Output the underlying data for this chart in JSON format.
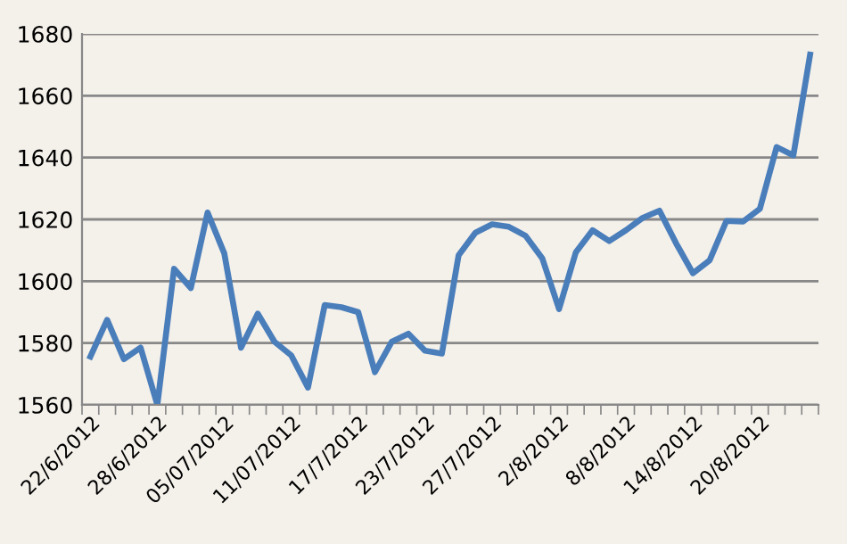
{
  "chart_data": {
    "type": "line",
    "categories": [
      "22/6/2012",
      null,
      null,
      null,
      "28/6/2012",
      null,
      null,
      null,
      "05/07/2012",
      null,
      null,
      null,
      "11/07/2012",
      null,
      null,
      null,
      "17/7/2012",
      null,
      null,
      null,
      "23/7/2012",
      null,
      null,
      null,
      "27/7/2012",
      null,
      null,
      null,
      "2/8/2012",
      null,
      null,
      null,
      "8/8/2012",
      null,
      null,
      null,
      "14/8/2012",
      null,
      null,
      null,
      "20/8/2012",
      null,
      null,
      null
    ],
    "series": [
      {
        "color": "#4a7ebb",
        "values": [
          1575.6,
          1587.5,
          1574.8,
          1578.5,
          1560,
          1604,
          1597.8,
          1622.2,
          1609,
          1578.5,
          1589.5,
          1580.4,
          1576,
          1565.6,
          1592.3,
          1591.6,
          1590,
          1570.6,
          1580.4,
          1583,
          1577.5,
          1576.6,
          1608.4,
          1615.7,
          1618.4,
          1617.6,
          1614.7,
          1607.4,
          1591,
          1609.3,
          1616.5,
          1613,
          1616.5,
          1620.5,
          1622.8,
          1612.2,
          1602.6,
          1606.8,
          1619.5,
          1619.3,
          1623.4,
          1643.4,
          1640.7,
          1673.3
        ]
      }
    ],
    "ylim": [
      1560,
      1680
    ],
    "yticks": [
      1560,
      1580,
      1600,
      1620,
      1640,
      1660,
      1680
    ],
    "grid": "y",
    "marker": "none",
    "line_style": "solid",
    "legend": false
  }
}
